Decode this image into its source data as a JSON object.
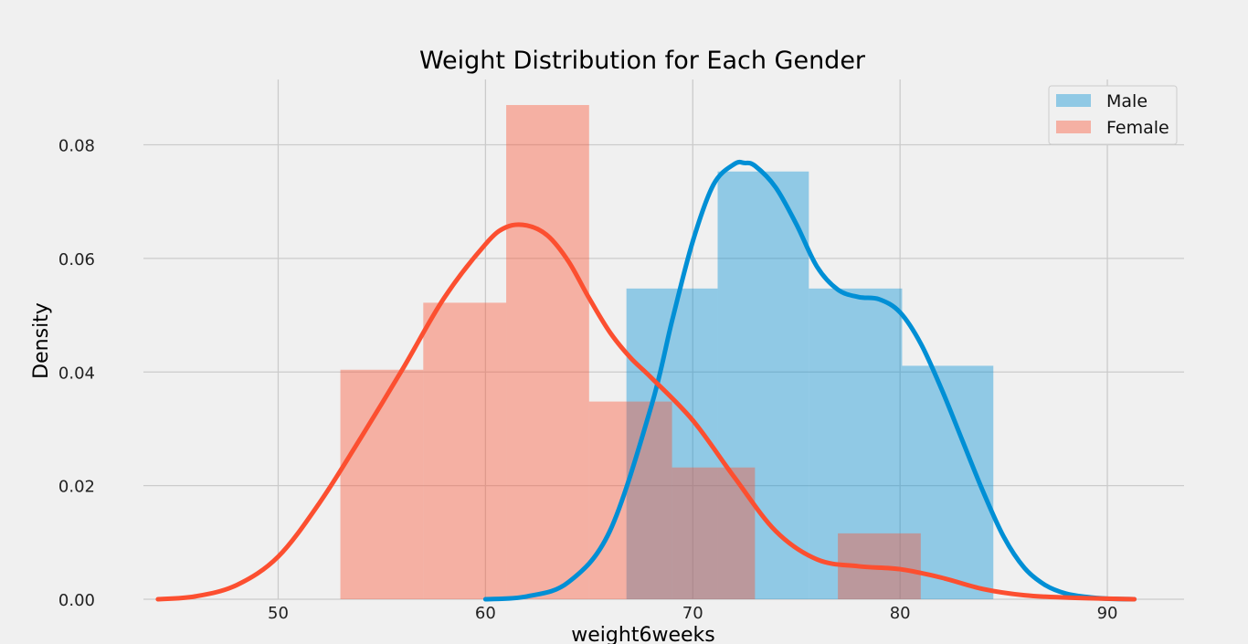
{
  "chart_data": {
    "type": "histogram",
    "title": "Weight Distribution for Each Gender",
    "xlabel": "weight6weeks",
    "ylabel": "Density",
    "xlim": [
      43.5,
      93.7
    ],
    "ylim": [
      0,
      0.0915
    ],
    "xticks": [
      50,
      60,
      70,
      80,
      90
    ],
    "yticks": [
      0.0,
      0.02,
      0.04,
      0.06,
      0.08
    ],
    "ytick_labels": [
      "0.00",
      "0.02",
      "0.04",
      "0.06",
      "0.08"
    ],
    "grid": true,
    "legend_position": "top-right",
    "series": [
      {
        "name": "Male",
        "color": "#008fd5",
        "hist_color": "#8fc6e5",
        "bins": [
          {
            "x0": 66.8,
            "x1": 71.2,
            "density": 0.0547
          },
          {
            "x0": 71.2,
            "x1": 75.6,
            "density": 0.0753
          },
          {
            "x0": 75.6,
            "x1": 80.1,
            "density": 0.0547
          },
          {
            "x0": 80.1,
            "x1": 84.5,
            "density": 0.0411
          }
        ],
        "kde": {
          "x": [
            60.0,
            62.0,
            64.0,
            66.0,
            68.0,
            69.0,
            70.0,
            71.0,
            72.0,
            72.5,
            73.0,
            74.0,
            75.0,
            76.0,
            77.0,
            78.0,
            79.0,
            80.0,
            81.0,
            82.0,
            83.0,
            84.0,
            85.0,
            86.0,
            87.0,
            88.0,
            89.0,
            90.0,
            91.3
          ],
          "y": [
            0.0,
            0.0005,
            0.003,
            0.012,
            0.034,
            0.049,
            0.063,
            0.073,
            0.0766,
            0.0768,
            0.0763,
            0.0725,
            0.066,
            0.0585,
            0.0545,
            0.0532,
            0.0528,
            0.0505,
            0.045,
            0.037,
            0.028,
            0.019,
            0.011,
            0.0055,
            0.0025,
            0.001,
            0.0004,
            0.0001,
            0.0
          ]
        }
      },
      {
        "name": "Female",
        "color": "#fc4f30",
        "hist_color": "#f3aea2",
        "bins": [
          {
            "x0": 53.0,
            "x1": 57.0,
            "density": 0.0404
          },
          {
            "x0": 57.0,
            "x1": 61.0,
            "density": 0.0522
          },
          {
            "x0": 61.0,
            "x1": 65.0,
            "density": 0.087
          },
          {
            "x0": 65.0,
            "x1": 69.0,
            "density": 0.0348
          },
          {
            "x0": 69.0,
            "x1": 73.0,
            "density": 0.0232
          },
          {
            "x0": 73.0,
            "x1": 77.0,
            "density": 0.0
          },
          {
            "x0": 77.0,
            "x1": 81.0,
            "density": 0.0116
          }
        ],
        "kde": {
          "x": [
            44.2,
            46.0,
            48.0,
            50.0,
            52.0,
            54.0,
            56.0,
            58.0,
            60.0,
            61.0,
            62.0,
            63.0,
            64.0,
            65.0,
            66.0,
            67.0,
            68.0,
            70.0,
            72.0,
            74.0,
            76.0,
            78.0,
            80.0,
            82.0,
            84.0,
            86.0,
            88.0,
            90.0,
            91.3
          ],
          "y": [
            0.0,
            0.0005,
            0.0025,
            0.0075,
            0.017,
            0.0285,
            0.0405,
            0.053,
            0.0625,
            0.0655,
            0.0658,
            0.064,
            0.0595,
            0.053,
            0.047,
            0.0425,
            0.039,
            0.0315,
            0.0215,
            0.012,
            0.007,
            0.0058,
            0.0053,
            0.0038,
            0.0018,
            0.0007,
            0.0003,
            0.0001,
            0.0
          ]
        }
      }
    ]
  }
}
